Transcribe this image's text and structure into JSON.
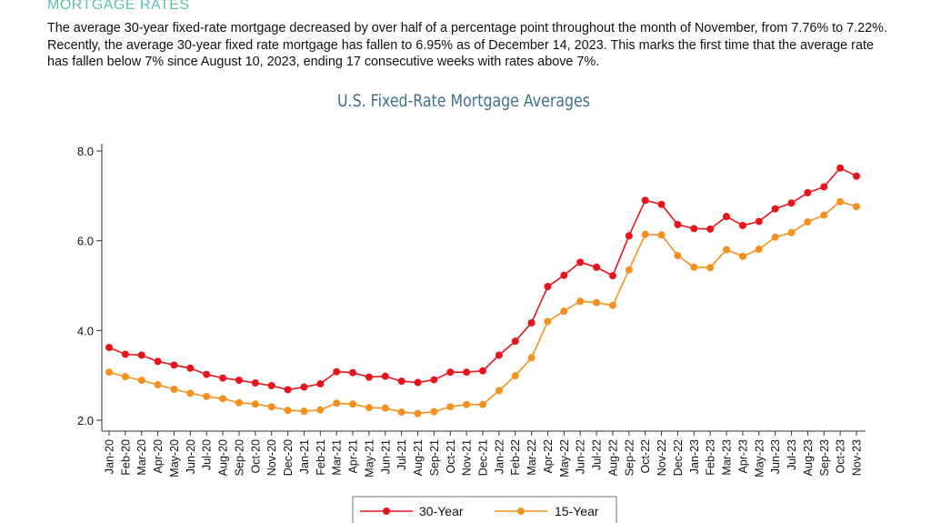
{
  "section": {
    "title": "MORTGAGE RATES",
    "text": "The average 30-year fixed-rate mortgage decreased by over half of a percentage point throughout the month of November, from 7.76% to 7.22%. Recently, the average 30-year fixed rate mortgage has fallen to 6.95% as of December 14, 2023. This marks the first time that the average rate has fallen below 7% since August 10, 2023, ending 17 consecutive weeks with rates above 7%."
  },
  "chart_data": {
    "type": "line",
    "title": "U.S. Fixed-Rate Mortgage Averages",
    "xlabel": "",
    "ylabel": "",
    "ylim": [
      2.0,
      8.0
    ],
    "yticks": [
      "2.0",
      "4.0",
      "6.0",
      "8.0"
    ],
    "grid": false,
    "legend": "bottom",
    "categories": [
      "Jan-20",
      "Feb-20",
      "Mar-20",
      "Apr-20",
      "May-20",
      "Jun-20",
      "Jul-20",
      "Aug-20",
      "Sep-20",
      "Oct-20",
      "Nov-20",
      "Dec-20",
      "Jan-21",
      "Feb-21",
      "Mar-21",
      "Apr-21",
      "May-21",
      "Jun-21",
      "Jul-21",
      "Aug-21",
      "Sep-21",
      "Oct-21",
      "Nov-21",
      "Dec-21",
      "Jan-22",
      "Feb-22",
      "Mar-22",
      "Apr-22",
      "May-22",
      "Jun-22",
      "Jul-22",
      "Aug-22",
      "Sep-22",
      "Oct-22",
      "Nov-22",
      "Dec-22",
      "Jan-23",
      "Feb-23",
      "Mar-23",
      "Apr-23",
      "May-23",
      "Jun-23",
      "Jul-23",
      "Aug-23",
      "Sep-23",
      "Oct-23",
      "Nov-23"
    ],
    "series": [
      {
        "name": "30-Year",
        "color": "#e8141b",
        "values": [
          3.62,
          3.47,
          3.45,
          3.31,
          3.23,
          3.16,
          3.02,
          2.94,
          2.89,
          2.83,
          2.77,
          2.68,
          2.74,
          2.81,
          3.08,
          3.06,
          2.96,
          2.98,
          2.87,
          2.84,
          2.9,
          3.07,
          3.07,
          3.1,
          3.45,
          3.76,
          4.17,
          4.98,
          5.23,
          5.52,
          5.41,
          5.22,
          6.11,
          6.9,
          6.81,
          6.36,
          6.27,
          6.26,
          6.54,
          6.34,
          6.43,
          6.71,
          6.84,
          7.07,
          7.2,
          7.62,
          7.44
        ]
      },
      {
        "name": "15-Year",
        "color": "#f5901e",
        "values": [
          3.07,
          2.97,
          2.89,
          2.79,
          2.69,
          2.6,
          2.53,
          2.48,
          2.39,
          2.36,
          2.3,
          2.22,
          2.2,
          2.23,
          2.38,
          2.36,
          2.28,
          2.27,
          2.18,
          2.15,
          2.19,
          2.3,
          2.35,
          2.35,
          2.66,
          2.99,
          3.39,
          4.2,
          4.43,
          4.65,
          4.62,
          4.56,
          5.35,
          6.14,
          6.13,
          5.67,
          5.41,
          5.4,
          5.8,
          5.65,
          5.81,
          6.08,
          6.18,
          6.42,
          6.57,
          6.87,
          6.76
        ]
      }
    ]
  }
}
